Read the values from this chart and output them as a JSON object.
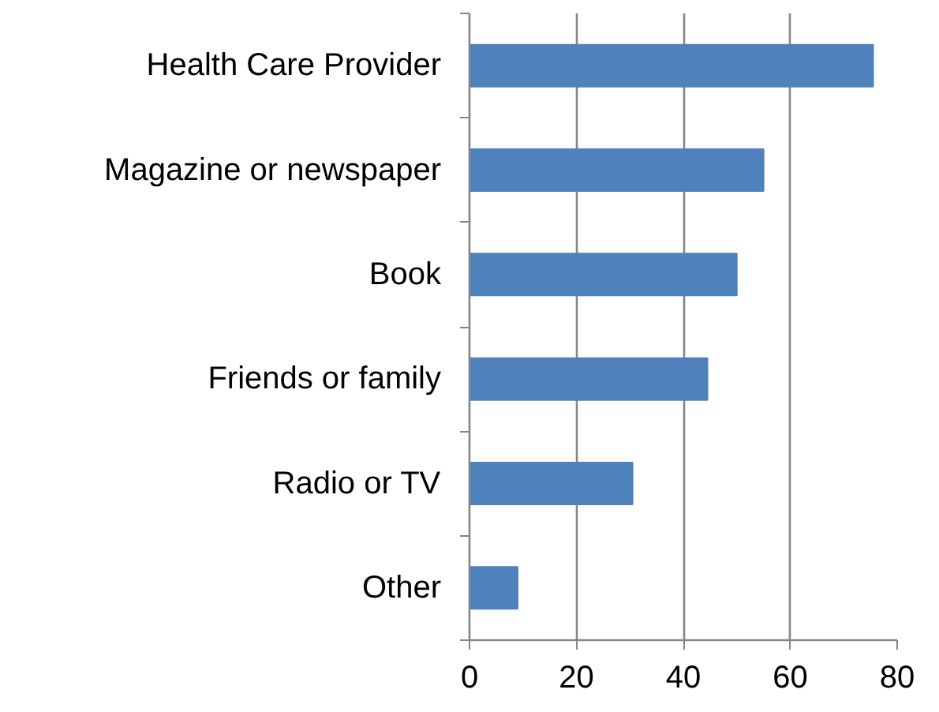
{
  "chart_data": {
    "type": "bar",
    "orientation": "horizontal",
    "categories": [
      "Health Care Provider",
      "Magazine or newspaper",
      "Book",
      "Friends or family",
      "Radio or TV",
      "Other"
    ],
    "values": [
      75.5,
      55,
      50,
      44.5,
      30.5,
      9
    ],
    "color": "#4f81bd",
    "xlim": [
      0,
      80
    ],
    "xticks": [
      0,
      20,
      40,
      60,
      80
    ],
    "grid": "x"
  }
}
